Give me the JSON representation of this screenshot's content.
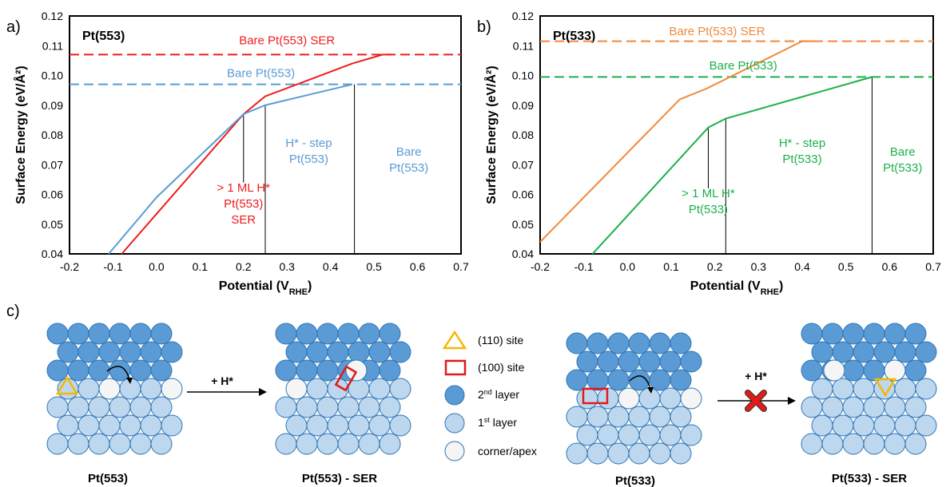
{
  "colors": {
    "red": "#ee1c1c",
    "blue": "#5b9bd5",
    "orange": "#f0883a",
    "green": "#1cb04c",
    "atom_2nd": "#5b9bd5",
    "atom_1st": "#bdd7ee",
    "atom_apex": "#f5f5f5",
    "atom_stroke": "#2e75b6",
    "site_110": "#f5b800",
    "site_100": "#e11a1a"
  },
  "chart_data": [
    {
      "type": "line",
      "panel_label": "a)",
      "surface_label": "Pt(553)",
      "xlabel": "Potential (V",
      "xlabel_sub": "RHE",
      "xlabel_end": ")",
      "ylabel": "Surface Energy (eV/Å²)",
      "xlim": [
        -0.2,
        0.7
      ],
      "ylim": [
        0.04,
        0.12
      ],
      "x_ticks": [
        "-0.2",
        "-0.1",
        "0.0",
        "0.1",
        "0.2",
        "0.3",
        "0.4",
        "0.5",
        "0.6",
        "0.7"
      ],
      "y_ticks": [
        "0.04",
        "0.05",
        "0.06",
        "0.07",
        "0.08",
        "0.09",
        "0.10",
        "0.11",
        "0.12"
      ],
      "series": [
        {
          "name": "Bare Pt(553) SER",
          "color_key": "red",
          "dashed": true,
          "x": [
            -0.2,
            0.7
          ],
          "y": [
            0.107,
            0.107
          ]
        },
        {
          "name": "Bare Pt(553)",
          "color_key": "blue",
          "dashed": true,
          "x": [
            -0.2,
            0.7
          ],
          "y": [
            0.097,
            0.097
          ]
        },
        {
          "color_key": "red",
          "dashed": false,
          "x": [
            -0.08,
            0.2,
            0.25,
            0.45,
            0.52,
            0.54
          ],
          "y": [
            0.04,
            0.087,
            0.093,
            0.104,
            0.107,
            0.107
          ]
        },
        {
          "color_key": "blue",
          "dashed": false,
          "x": [
            -0.11,
            0.0,
            0.2,
            0.25,
            0.45
          ],
          "y": [
            0.04,
            0.059,
            0.087,
            0.09,
            0.097
          ]
        }
      ],
      "vlines": [
        {
          "x": 0.2,
          "y": [
            0.064,
            0.087
          ]
        },
        {
          "x": 0.25,
          "y": [
            0.04,
            0.09
          ]
        },
        {
          "x": 0.455,
          "y": [
            0.04,
            0.097
          ]
        }
      ],
      "annotations": [
        {
          "lines": [
            "Bare Pt(553) SER"
          ],
          "color_key": "red",
          "x": 0.3,
          "y": 0.1105
        },
        {
          "lines": [
            "Bare Pt(553)"
          ],
          "color_key": "blue",
          "x": 0.24,
          "y": 0.0995
        },
        {
          "lines": [
            "H* - step",
            "Pt(553)"
          ],
          "color_key": "blue",
          "x": 0.35,
          "y": 0.076
        },
        {
          "lines": [
            "Bare",
            "Pt(553)"
          ],
          "color_key": "blue",
          "x": 0.58,
          "y": 0.073
        },
        {
          "lines": [
            "> 1 ML H*",
            "Pt(553)",
            "SER"
          ],
          "color_key": "red",
          "x": 0.2,
          "y": 0.061
        }
      ]
    },
    {
      "type": "line",
      "panel_label": "b)",
      "surface_label": "Pt(533)",
      "xlabel": "Potential (V",
      "xlabel_sub": "RHE",
      "xlabel_end": ")",
      "ylabel": "Surface Energy (eV/Å²)",
      "xlim": [
        -0.2,
        0.7
      ],
      "ylim": [
        0.04,
        0.12
      ],
      "x_ticks": [
        "-0.2",
        "-0.1",
        "0.0",
        "0.1",
        "0.2",
        "0.3",
        "0.4",
        "0.5",
        "0.6",
        "0.7"
      ],
      "y_ticks": [
        "0.04",
        "0.05",
        "0.06",
        "0.07",
        "0.08",
        "0.09",
        "0.10",
        "0.11",
        "0.12"
      ],
      "series": [
        {
          "name": "Bare Pt(533) SER",
          "color_key": "orange",
          "dashed": true,
          "x": [
            -0.2,
            0.7
          ],
          "y": [
            0.1115,
            0.1115
          ]
        },
        {
          "name": "Bare Pt(533)",
          "color_key": "green",
          "dashed": true,
          "x": [
            -0.2,
            0.7
          ],
          "y": [
            0.0995,
            0.0995
          ]
        },
        {
          "color_key": "orange",
          "dashed": false,
          "x": [
            -0.2,
            0.12,
            0.18,
            0.4,
            0.43
          ],
          "y": [
            0.044,
            0.092,
            0.0955,
            0.1115,
            0.1115
          ]
        },
        {
          "color_key": "green",
          "dashed": false,
          "x": [
            -0.08,
            0.185,
            0.225,
            0.56
          ],
          "y": [
            0.04,
            0.0825,
            0.0855,
            0.0995
          ]
        }
      ],
      "vlines": [
        {
          "x": 0.185,
          "y": [
            0.062,
            0.0825
          ]
        },
        {
          "x": 0.225,
          "y": [
            0.04,
            0.0855
          ]
        },
        {
          "x": 0.56,
          "y": [
            0.04,
            0.0995
          ]
        }
      ],
      "annotations": [
        {
          "lines": [
            "Bare Pt(533) SER"
          ],
          "color_key": "orange",
          "x": 0.205,
          "y": 0.1135
        },
        {
          "lines": [
            "Bare Pt(533)"
          ],
          "color_key": "green",
          "x": 0.265,
          "y": 0.102
        },
        {
          "lines": [
            "H* - step",
            "Pt(533)"
          ],
          "color_key": "green",
          "x": 0.4,
          "y": 0.076
        },
        {
          "lines": [
            "Bare",
            "Pt(533)"
          ],
          "color_key": "green",
          "x": 0.63,
          "y": 0.073
        },
        {
          "lines": [
            "> 1 ML H*",
            "Pt(533)"
          ],
          "color_key": "green",
          "x": 0.185,
          "y": 0.059
        }
      ]
    }
  ],
  "panel_c": {
    "label": "c)",
    "captions": [
      "Pt(553)",
      "Pt(553)  - SER",
      "Pt(533)",
      "Pt(533)  - SER"
    ],
    "arrow1_label": "+ H*",
    "arrow2_label": "+ H*",
    "legend": [
      {
        "label": "(110) site",
        "icon": "triangle-icon"
      },
      {
        "label": "(100) site",
        "icon": "square-icon"
      },
      {
        "label": "2nd layer",
        "sup": "nd",
        "base": "2",
        "rest": " layer",
        "icon": "atom-2nd-icon"
      },
      {
        "label": "1st layer",
        "sup": "st",
        "base": "1",
        "rest": " layer",
        "icon": "atom-1st-icon"
      },
      {
        "label": "corner/apex",
        "icon": "atom-apex-icon"
      }
    ]
  }
}
